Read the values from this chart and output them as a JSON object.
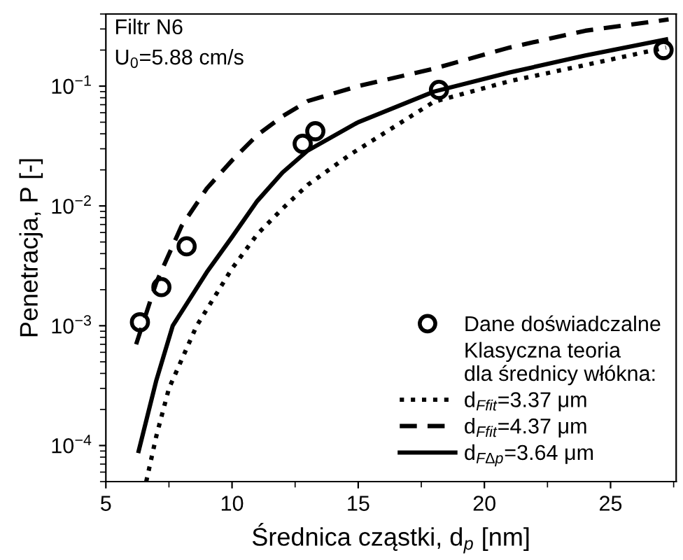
{
  "chart_data": {
    "type": "line",
    "xlabel": "Średnica cząstki, d$_{p}$ [nm]",
    "ylabel": "Penetracja, P [-]",
    "annotations": [
      "Filtr N6",
      "U$_{0}$=5.88 cm/s",
      "Klasyczna teoria\ndla średnicy włókna:"
    ],
    "log": "y",
    "xlim": [
      5,
      27.6
    ],
    "ylim": [
      5e-05,
      0.4
    ],
    "xticks": [
      5,
      10,
      15,
      20,
      25
    ],
    "yticks": [
      {
        "value": 0.0001,
        "label": "10$^{−4}$"
      },
      {
        "value": 0.001,
        "label": "10$^{−3}$"
      },
      {
        "value": 0.01,
        "label": "10$^{−2}$"
      },
      {
        "value": 0.1,
        "label": "10$^{−1}$"
      }
    ],
    "legend": "bottom right",
    "grid": false,
    "series": [
      {
        "name": "Dane doświadczalne",
        "type": "scatter",
        "marker": "circle",
        "color": "#000000",
        "x": [
          6.35,
          7.2,
          8.2,
          12.8,
          13.3,
          18.2,
          27.1
        ],
        "values": [
          0.00107,
          0.0021,
          0.0046,
          0.033,
          0.042,
          0.093,
          0.2
        ]
      },
      {
        "name": "d$_{Ffit}$=3.37 μm",
        "line_style": "dotted",
        "color": "#000000",
        "x": [
          6.6,
          7,
          7.5,
          8.6,
          10,
          11,
          12,
          13,
          14.7,
          18,
          21,
          24,
          27.2
        ],
        "values": [
          5e-05,
          0.00012,
          0.0003,
          0.001,
          0.003,
          0.0058,
          0.0095,
          0.015,
          0.027,
          0.074,
          0.11,
          0.15,
          0.21
        ]
      },
      {
        "name": "d$_{Ffit}$=4.37 μm",
        "line_style": "dashed",
        "color": "#000000",
        "x": [
          6.2,
          7,
          8,
          9,
          10,
          11,
          12,
          13,
          15,
          18,
          21,
          24,
          27.3
        ],
        "values": [
          0.0007,
          0.0023,
          0.0068,
          0.014,
          0.024,
          0.039,
          0.056,
          0.075,
          0.1,
          0.14,
          0.21,
          0.29,
          0.36
        ]
      },
      {
        "name": "d$_{FΔp}$=3.64 μm",
        "line_style": "solid",
        "color": "#000000",
        "x": [
          6.3,
          7,
          7.65,
          9,
          10,
          11,
          12,
          13,
          15,
          18,
          21,
          24,
          27.2
        ],
        "values": [
          9e-05,
          0.00035,
          0.001,
          0.0028,
          0.0055,
          0.011,
          0.019,
          0.029,
          0.05,
          0.09,
          0.13,
          0.18,
          0.245
        ]
      }
    ]
  }
}
